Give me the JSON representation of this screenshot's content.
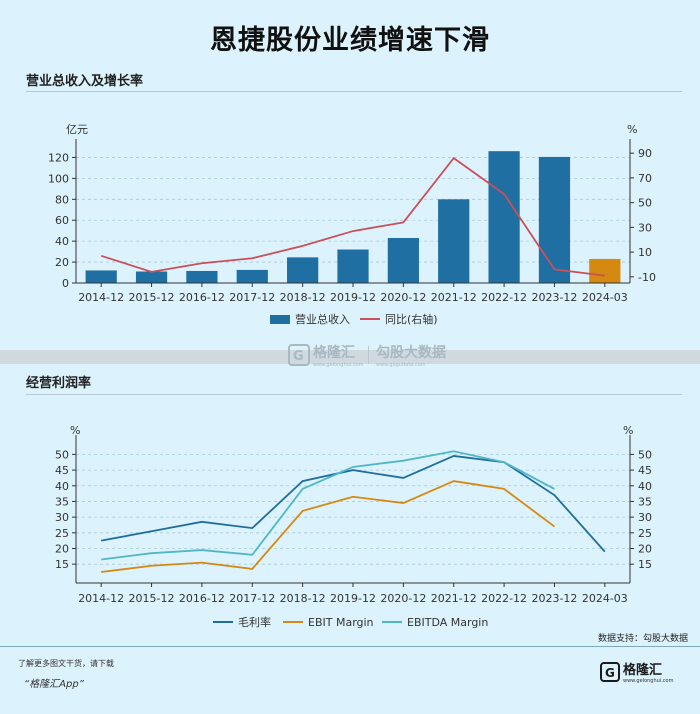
{
  "page": {
    "title": "恩捷股份业绩增速下滑",
    "section1_title": "营业总收入及增长率",
    "section2_title": "经营利润率",
    "support_label": "数据支持：勾股大数据",
    "footer_line1": "了解更多图文干货，请下载",
    "footer_line2": "“格隆汇App”",
    "watermark_brand": "格隆汇",
    "watermark_brand_sub": "www.gelonghui.com",
    "watermark_data": "勾股大数据",
    "watermark_data_sub": "www.gogudata.com",
    "logo_text": "格隆汇",
    "logo_sub": "www.gelonghui.com"
  },
  "chart_data": [
    {
      "type": "bar",
      "title": "营业总收入及增长率",
      "categories": [
        "2014-12",
        "2015-12",
        "2016-12",
        "2017-12",
        "2018-12",
        "2019-12",
        "2020-12",
        "2021-12",
        "2022-12",
        "2023-12",
        "2024-03"
      ],
      "ylabel": "亿元",
      "y2label": "%",
      "ylim": [
        0,
        130
      ],
      "yticks": [
        0,
        20,
        40,
        60,
        80,
        100,
        120
      ],
      "y2lim": [
        -15,
        95
      ],
      "y2ticks": [
        -10,
        10,
        30,
        50,
        70,
        90
      ],
      "grid": true,
      "legend_position": "bottom",
      "series": [
        {
          "name": "营业总收入",
          "kind": "bar",
          "axis": "left",
          "color": "#1f6fa3",
          "highlight_last_color": "#d68910",
          "values": [
            12,
            11,
            11.5,
            12.5,
            24.5,
            32,
            43,
            80,
            126,
            120.5,
            23
          ]
        },
        {
          "name": "同比(右轴)",
          "kind": "line",
          "axis": "right",
          "color": "#c9505a",
          "values": [
            7,
            -6,
            1,
            5,
            15,
            27,
            34,
            86,
            57,
            -4,
            -9
          ]
        }
      ]
    },
    {
      "type": "line",
      "title": "经营利润率",
      "categories": [
        "2014-12",
        "2015-12",
        "2016-12",
        "2017-12",
        "2018-12",
        "2019-12",
        "2020-12",
        "2021-12",
        "2022-12",
        "2023-12",
        "2024-03"
      ],
      "ylabel": "%",
      "y2label": "%",
      "ylim": [
        9,
        53
      ],
      "yticks": [
        15,
        20,
        25,
        30,
        35,
        40,
        45,
        50
      ],
      "grid": true,
      "legend_position": "bottom",
      "series": [
        {
          "name": "毛利率",
          "color": "#1f6f9e",
          "values": [
            22.5,
            25.5,
            28.5,
            26.5,
            41.5,
            45,
            42.5,
            49.5,
            47.5,
            37,
            19
          ]
        },
        {
          "name": "EBIT Margin",
          "color": "#d68910",
          "values": [
            12.5,
            14.5,
            15.5,
            13.5,
            32,
            36.5,
            34.5,
            41.5,
            39,
            27,
            null
          ]
        },
        {
          "name": "EBITDA Margin",
          "color": "#4fb8c4",
          "values": [
            16.5,
            18.5,
            19.5,
            18,
            39,
            46,
            48,
            51,
            47.5,
            39,
            null
          ]
        }
      ]
    }
  ]
}
